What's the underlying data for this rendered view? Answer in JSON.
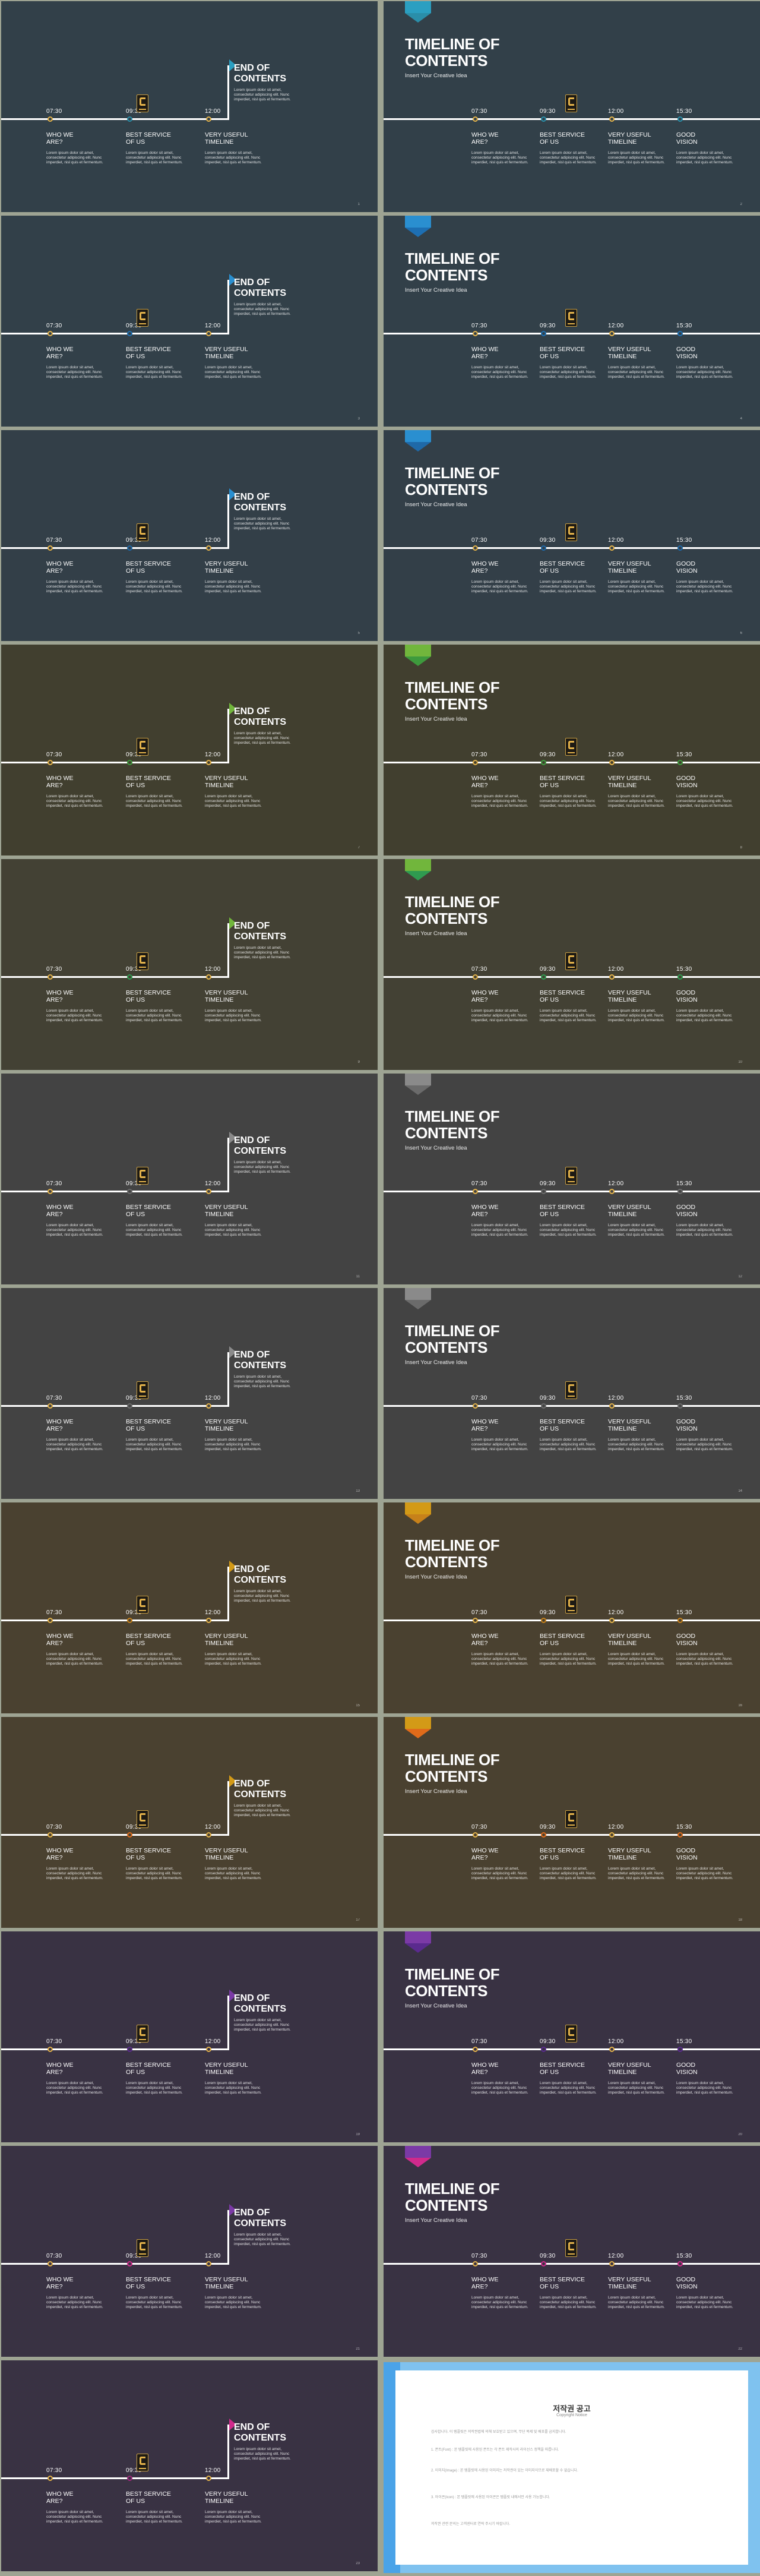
{
  "timeline": {
    "title_line1": "TIMELINE OF",
    "title_line2": "CONTENTS",
    "subtitle": "Insert Your Creative Idea",
    "times": [
      "07:30",
      "09:30",
      "12:00",
      "15:30"
    ],
    "heads": [
      [
        "WHO WE",
        "ARE?"
      ],
      [
        "BEST SERVICE",
        "OF US"
      ],
      [
        "VERY USEFUL",
        "TIMELINE"
      ],
      [
        "GOOD",
        "VISION"
      ]
    ],
    "body_text": "Lorem ipsum dolor sit amet, consectetur adipiscing elit. Nunc imperdiet, nisl quis et fermentum."
  },
  "end": {
    "title_line1": "END OF",
    "title_line2": "CONTENTS",
    "desc": "Lorem ipsum dolor sit amet, consectetur adipiscing elit. Nunc imperdiet, nisl quis et fermentum.",
    "times": [
      "07:30",
      "09:30",
      "12:00"
    ],
    "heads": [
      [
        "WHO WE",
        "ARE?"
      ],
      [
        "BEST SERVICE",
        "OF US"
      ],
      [
        "VERY USEFUL",
        "TIMELINE"
      ]
    ]
  },
  "themes": [
    {
      "bg": "#324049",
      "accent": "#2b9fc1",
      "accent2": "#2a8ea9"
    },
    {
      "bg": "#324049",
      "accent": "#2a8fd0",
      "accent2": "#1d6fb3"
    },
    {
      "bg": "#333f48",
      "accent": "#2a8fd0",
      "accent2": "#1f69a8"
    },
    {
      "bg": "#413f2f",
      "accent": "#71b63c",
      "accent2": "#3e9a3d"
    },
    {
      "bg": "#434134",
      "accent": "#71b63c",
      "accent2": "#2f9b50"
    },
    {
      "bg": "#434343",
      "accent": "#8a8a8a",
      "accent2": "#6b6b6b"
    },
    {
      "bg": "#434343",
      "accent": "#8a8a8a",
      "accent2": "#6b6b6b"
    },
    {
      "bg": "#4a4130",
      "accent": "#d39a17",
      "accent2": "#c7811a"
    },
    {
      "bg": "#4a4130",
      "accent": "#d39a17",
      "accent2": "#e06b1a"
    },
    {
      "bg": "#393243",
      "accent": "#7b3aa6",
      "accent2": "#5a2a8e"
    },
    {
      "bg": "#393243",
      "accent": "#7b3aa6",
      "accent2": "#d02a8c"
    },
    {
      "bg": "#393243",
      "accent": "#d02a8c",
      "accent2": "#a02a7c"
    }
  ],
  "page_numbers": [
    "1",
    "2",
    "3",
    "4",
    "5",
    "6",
    "7",
    "8",
    "9",
    "10",
    "11",
    "12",
    "13",
    "14",
    "15",
    "16",
    "17",
    "18",
    "19",
    "20",
    "21",
    "22",
    "23"
  ],
  "copyright": {
    "title": "저작권 공고",
    "subtitle": "Copyright Notice",
    "paragraphs": [
      "감사합니다. 이 템플릿은 저작권법에 의해 보호받고 있으며, 무단 복제 및 배포를 금지합니다.",
      "1. 폰트(Font) : 본 템플릿에 사용된 폰트는 각 폰트 제작사의 라이선스 정책을 따릅니다.",
      "2. 이미지(Image) : 본 템플릿에 사용된 이미지는 저작권이 있는 이미지이므로 재배포할 수 없습니다.",
      "3. 아이콘(Icon) : 본 템플릿에 사용된 아이콘은 템플릿 내에서만 사용 가능합니다.",
      "저작권 관련 문의는 고객센터로 연락 주시기 바랍니다."
    ]
  }
}
